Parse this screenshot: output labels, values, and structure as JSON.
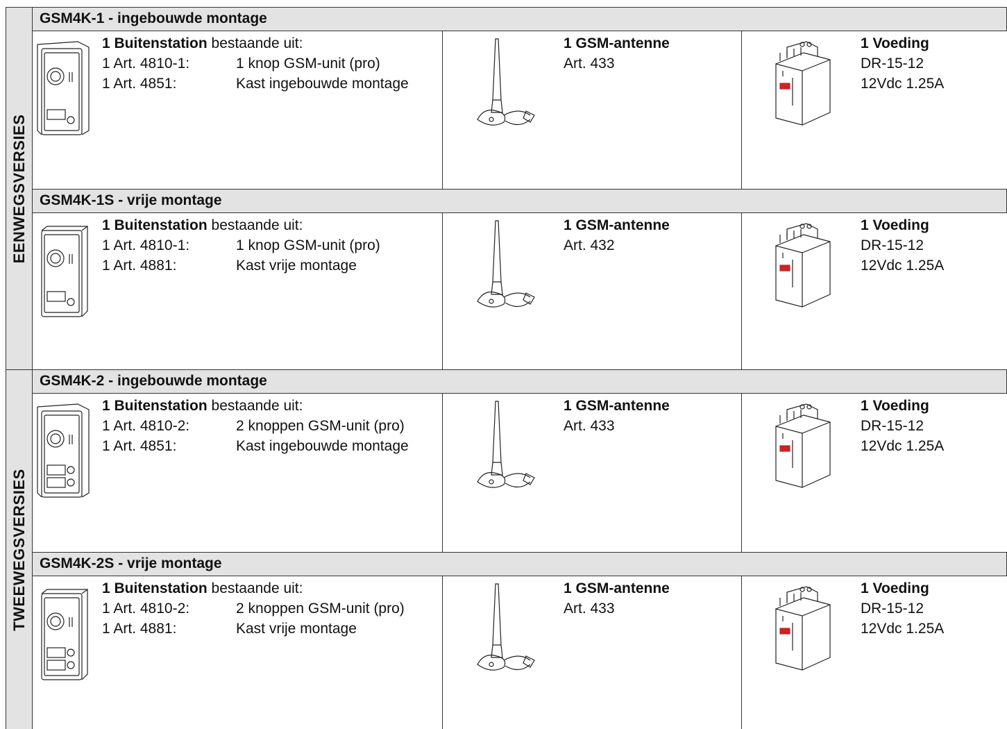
{
  "groups": [
    {
      "label": "EENWEGSVERSIES",
      "sections": [
        {
          "title": "GSM4K-1 - ingebouwde montage",
          "station": {
            "bold": "1 Buitenstation",
            "rest": "bestaande uit:",
            "lines": [
              [
                "1 Art. 4810-1:",
                "1 knop GSM-unit (pro)"
              ],
              [
                "1 Art. 4851:",
                "Kast ingebouwde montage"
              ]
            ]
          },
          "antenna": {
            "title": "1 GSM-antenne",
            "art": "Art. 433"
          },
          "power": {
            "title": "1 Voeding",
            "model": "DR-15-12",
            "spec": "12Vdc 1.25A"
          }
        },
        {
          "title": "GSM4K-1S - vrije montage",
          "station": {
            "bold": "1 Buitenstation",
            "rest": "bestaande uit:",
            "lines": [
              [
                "1 Art. 4810-1:",
                "1 knop GSM-unit (pro)"
              ],
              [
                "1 Art. 4881:",
                "Kast vrije montage"
              ]
            ]
          },
          "antenna": {
            "title": "1 GSM-antenne",
            "art": "Art. 432"
          },
          "power": {
            "title": "1 Voeding",
            "model": "DR-15-12",
            "spec": "12Vdc 1.25A"
          }
        }
      ]
    },
    {
      "label": "TWEEWEGSVERSIES",
      "sections": [
        {
          "title": "GSM4K-2 - ingebouwde montage",
          "station": {
            "bold": "1 Buitenstation",
            "rest": "bestaande uit:",
            "lines": [
              [
                "1 Art. 4810-2:",
                "2 knoppen GSM-unit (pro)"
              ],
              [
                "1 Art. 4851:",
                "Kast ingebouwde montage"
              ]
            ]
          },
          "antenna": {
            "title": "1 GSM-antenne",
            "art": "Art. 433"
          },
          "power": {
            "title": "1 Voeding",
            "model": "DR-15-12",
            "spec": "12Vdc 1.25A"
          }
        },
        {
          "title": "GSM4K-2S - vrije montage",
          "station": {
            "bold": "1 Buitenstation",
            "rest": "bestaande uit:",
            "lines": [
              [
                "1 Art. 4810-2:",
                "2 knoppen GSM-unit (pro)"
              ],
              [
                "1 Art. 4881:",
                "Kast vrije montage"
              ]
            ]
          },
          "antenna": {
            "title": "1 GSM-antenne",
            "art": "Art. 433"
          },
          "power": {
            "title": "1 Voeding",
            "model": "DR-15-12",
            "spec": "12Vdc 1.25A"
          }
        }
      ]
    }
  ]
}
